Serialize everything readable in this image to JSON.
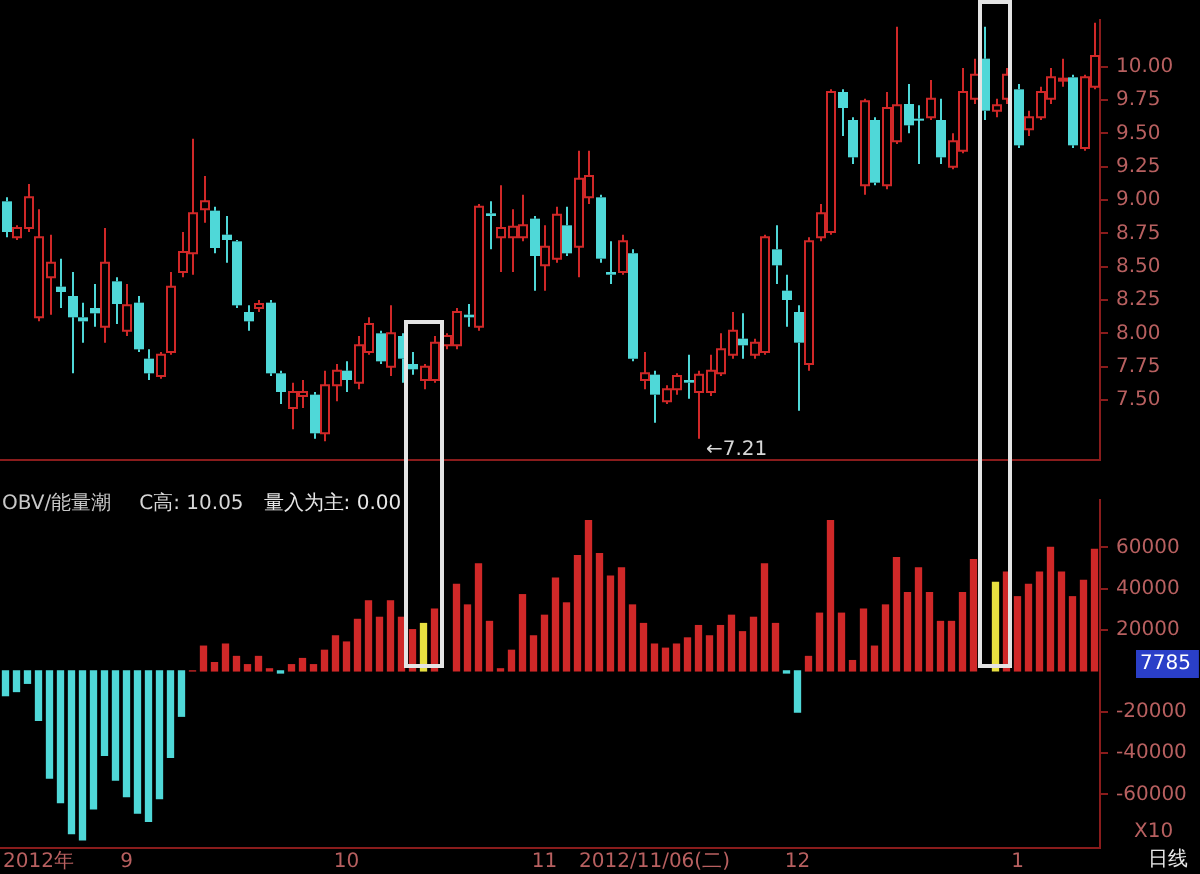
{
  "chart_data": [
    {
      "type": "candlestick",
      "categories": [
        null,
        null,
        null,
        null,
        null,
        null,
        null,
        null,
        null,
        null,
        null,
        null,
        null,
        null,
        null,
        null,
        null,
        null,
        null,
        null,
        null,
        null,
        null,
        null,
        null,
        null,
        null,
        null,
        null,
        null,
        null,
        null,
        null,
        null,
        null,
        null,
        null,
        null,
        null,
        null,
        null,
        null,
        null,
        null,
        null,
        null,
        null,
        null,
        null,
        null,
        null,
        null,
        null,
        null,
        null,
        null,
        null,
        null,
        null,
        null,
        null,
        null,
        null,
        null,
        null,
        null,
        null,
        null,
        null,
        null,
        null,
        null,
        null,
        null,
        null,
        null,
        null,
        null,
        null,
        null,
        null,
        null,
        null,
        null,
        null,
        null,
        null,
        null,
        null,
        null,
        null,
        null,
        null,
        null,
        null,
        null,
        null,
        null,
        null,
        null
      ],
      "ohlc": [
        [
          8.99,
          9.02,
          8.72,
          8.76
        ],
        [
          8.72,
          8.81,
          8.7,
          8.79
        ],
        [
          8.79,
          9.12,
          8.76,
          9.02
        ],
        [
          8.12,
          8.93,
          8.09,
          8.72
        ],
        [
          8.42,
          8.74,
          8.14,
          8.53
        ],
        [
          8.35,
          8.56,
          8.19,
          8.31
        ],
        [
          8.28,
          8.46,
          7.7,
          8.12
        ],
        [
          8.12,
          8.23,
          7.93,
          8.09
        ],
        [
          8.19,
          8.37,
          8.05,
          8.15
        ],
        [
          8.05,
          8.79,
          7.93,
          8.53
        ],
        [
          8.39,
          8.42,
          8.07,
          8.22
        ],
        [
          8.02,
          8.37,
          7.98,
          8.21
        ],
        [
          8.23,
          8.28,
          7.86,
          7.88
        ],
        [
          7.81,
          7.88,
          7.65,
          7.7
        ],
        [
          7.68,
          7.86,
          7.66,
          7.84
        ],
        [
          7.86,
          8.46,
          7.84,
          8.35
        ],
        [
          8.46,
          8.76,
          8.42,
          8.61
        ],
        [
          8.6,
          9.46,
          8.44,
          8.9
        ],
        [
          8.93,
          9.18,
          8.83,
          8.99
        ],
        [
          8.92,
          8.95,
          8.6,
          8.64
        ],
        [
          8.74,
          8.88,
          8.53,
          8.7
        ],
        [
          8.69,
          8.7,
          8.19,
          8.21
        ],
        [
          8.16,
          8.21,
          8.02,
          8.09
        ],
        [
          8.19,
          8.25,
          8.16,
          8.22
        ],
        [
          8.23,
          8.25,
          7.68,
          7.7
        ],
        [
          7.7,
          7.72,
          7.47,
          7.56
        ],
        [
          7.44,
          7.63,
          7.28,
          7.56
        ],
        [
          7.53,
          7.65,
          7.44,
          7.56
        ],
        [
          7.54,
          7.56,
          7.21,
          7.25
        ],
        [
          7.25,
          7.72,
          7.19,
          7.61
        ],
        [
          7.61,
          7.77,
          7.49,
          7.72
        ],
        [
          7.72,
          7.79,
          7.56,
          7.65
        ],
        [
          7.63,
          7.98,
          7.58,
          7.91
        ],
        [
          7.86,
          8.12,
          7.84,
          8.07
        ],
        [
          8.0,
          8.02,
          7.77,
          7.79
        ],
        [
          7.75,
          8.21,
          7.68,
          8.0
        ],
        [
          7.98,
          8.0,
          7.63,
          7.81
        ],
        [
          7.77,
          7.86,
          7.69,
          7.73
        ],
        [
          7.65,
          7.77,
          7.58,
          7.75
        ],
        [
          7.65,
          7.98,
          7.63,
          7.93
        ],
        [
          7.91,
          8.0,
          7.88,
          7.98
        ],
        [
          7.91,
          8.19,
          7.88,
          8.16
        ],
        [
          8.14,
          8.22,
          8.05,
          8.12
        ],
        [
          8.05,
          8.97,
          8.02,
          8.95
        ],
        [
          8.9,
          8.99,
          8.63,
          8.88
        ],
        [
          8.72,
          9.11,
          8.46,
          8.79
        ],
        [
          8.72,
          8.93,
          8.46,
          8.8
        ],
        [
          8.72,
          9.04,
          8.69,
          8.81
        ],
        [
          8.86,
          8.88,
          8.32,
          8.58
        ],
        [
          8.51,
          8.81,
          8.32,
          8.65
        ],
        [
          8.56,
          8.95,
          8.53,
          8.89
        ],
        [
          8.81,
          8.95,
          8.58,
          8.6
        ],
        [
          8.65,
          9.37,
          8.42,
          9.16
        ],
        [
          9.02,
          9.37,
          8.97,
          9.18
        ],
        [
          9.02,
          9.04,
          8.53,
          8.56
        ],
        [
          8.46,
          8.69,
          8.37,
          8.44
        ],
        [
          8.46,
          8.74,
          8.44,
          8.69
        ],
        [
          8.6,
          8.63,
          7.79,
          7.81
        ],
        [
          7.65,
          7.86,
          7.58,
          7.7
        ],
        [
          7.69,
          7.72,
          7.33,
          7.54
        ],
        [
          7.49,
          7.61,
          7.47,
          7.58
        ],
        [
          7.58,
          7.7,
          7.54,
          7.68
        ],
        [
          7.65,
          7.84,
          7.51,
          7.63
        ],
        [
          7.56,
          7.72,
          7.21,
          7.69
        ],
        [
          7.56,
          7.84,
          7.53,
          7.72
        ],
        [
          7.7,
          8.0,
          7.68,
          7.88
        ],
        [
          7.84,
          8.16,
          7.81,
          8.02
        ],
        [
          7.96,
          8.15,
          7.81,
          7.91
        ],
        [
          7.84,
          7.96,
          7.81,
          7.93
        ],
        [
          7.86,
          8.74,
          7.84,
          8.72
        ],
        [
          8.63,
          8.81,
          8.37,
          8.51
        ],
        [
          8.32,
          8.44,
          8.05,
          8.25
        ],
        [
          8.16,
          8.21,
          7.42,
          7.93
        ],
        [
          7.77,
          8.72,
          7.72,
          8.69
        ],
        [
          8.72,
          8.97,
          8.69,
          8.9
        ],
        [
          8.76,
          9.83,
          8.74,
          9.81
        ],
        [
          9.81,
          9.83,
          9.48,
          9.69
        ],
        [
          9.6,
          9.62,
          9.27,
          9.32
        ],
        [
          9.11,
          9.76,
          9.04,
          9.74
        ],
        [
          9.6,
          9.62,
          9.11,
          9.13
        ],
        [
          9.11,
          9.81,
          9.08,
          9.69
        ],
        [
          9.44,
          10.3,
          9.42,
          9.71
        ],
        [
          9.72,
          9.87,
          9.5,
          9.56
        ],
        [
          9.61,
          9.71,
          9.27,
          9.6
        ],
        [
          9.62,
          9.9,
          9.6,
          9.76
        ],
        [
          9.6,
          9.76,
          9.27,
          9.32
        ],
        [
          9.25,
          9.5,
          9.23,
          9.44
        ],
        [
          9.37,
          9.99,
          9.35,
          9.81
        ],
        [
          9.76,
          10.06,
          9.72,
          9.94
        ],
        [
          10.06,
          10.3,
          9.6,
          9.67
        ],
        [
          9.67,
          9.76,
          9.62,
          9.71
        ],
        [
          9.76,
          9.99,
          9.72,
          9.94
        ],
        [
          9.83,
          9.87,
          9.39,
          9.41
        ],
        [
          9.53,
          9.67,
          9.48,
          9.62
        ],
        [
          9.62,
          9.85,
          9.6,
          9.81
        ],
        [
          9.76,
          9.99,
          9.72,
          9.92
        ],
        [
          9.9,
          10.06,
          9.85,
          9.91
        ],
        [
          9.92,
          9.94,
          9.39,
          9.41
        ],
        [
          9.39,
          9.94,
          9.37,
          9.92
        ],
        [
          9.85,
          10.33,
          9.83,
          10.08
        ]
      ],
      "colors": [
        "#4fd8d8",
        "#d02828",
        "#d02828",
        "#d02828",
        "#d02828",
        "#4fd8d8",
        "#4fd8d8",
        "#4fd8d8",
        "#4fd8d8",
        "#d02828",
        "#4fd8d8",
        "#d02828",
        "#4fd8d8",
        "#4fd8d8",
        "#d02828",
        "#d02828",
        "#d02828",
        "#d02828",
        "#d02828",
        "#4fd8d8",
        "#4fd8d8",
        "#4fd8d8",
        "#4fd8d8",
        "#d02828",
        "#4fd8d8",
        "#4fd8d8",
        "#d02828",
        "#d02828",
        "#4fd8d8",
        "#d02828",
        "#d02828",
        "#4fd8d8",
        "#d02828",
        "#d02828",
        "#4fd8d8",
        "#d02828",
        "#4fd8d8",
        "#4fd8d8",
        "#d02828",
        "#d02828",
        "#d02828",
        "#d02828",
        "#4fd8d8",
        "#d02828",
        "#4fd8d8",
        "#d02828",
        "#d02828",
        "#d02828",
        "#4fd8d8",
        "#d02828",
        "#d02828",
        "#4fd8d8",
        "#d02828",
        "#d02828",
        "#4fd8d8",
        "#4fd8d8",
        "#d02828",
        "#4fd8d8",
        "#d02828",
        "#4fd8d8",
        "#d02828",
        "#d02828",
        "#4fd8d8",
        "#d02828",
        "#d02828",
        "#d02828",
        "#d02828",
        "#4fd8d8",
        "#d02828",
        "#d02828",
        "#4fd8d8",
        "#4fd8d8",
        "#4fd8d8",
        "#d02828",
        "#d02828",
        "#d02828",
        "#4fd8d8",
        "#4fd8d8",
        "#d02828",
        "#4fd8d8",
        "#d02828",
        "#d02828",
        "#4fd8d8",
        "#4fd8d8",
        "#d02828",
        "#4fd8d8",
        "#d02828",
        "#d02828",
        "#d02828",
        "#4fd8d8",
        "#d02828",
        "#d02828",
        "#4fd8d8",
        "#d02828",
        "#d02828",
        "#d02828",
        "#d02828",
        "#4fd8d8",
        "#d02828",
        "#d02828"
      ],
      "ylim": [
        7.05,
        10.35
      ],
      "yticks": [
        {
          "value": 7.5,
          "label": "7.50"
        },
        7.75,
        {
          "value": 8,
          "label": "8.00"
        },
        8.25,
        {
          "value": 8.5,
          "label": "8.50"
        },
        8.75,
        {
          "value": 9,
          "label": "9.00"
        },
        9.25,
        {
          "value": 9.5,
          "label": "9.50"
        },
        9.75,
        {
          "value": 10,
          "label": "10.00"
        }
      ],
      "annotations": [
        "←7.21"
      ]
    },
    {
      "type": "bar",
      "title": "OBV/能量潮",
      "categories": [
        null,
        null,
        null,
        "2012年",
        null,
        null,
        null,
        null,
        null,
        null,
        null,
        "9",
        null,
        null,
        null,
        null,
        null,
        null,
        null,
        null,
        null,
        null,
        null,
        null,
        null,
        null,
        null,
        null,
        null,
        null,
        null,
        "10",
        null,
        null,
        null,
        null,
        null,
        null,
        null,
        null,
        null,
        null,
        null,
        null,
        null,
        null,
        null,
        null,
        null,
        "11",
        null,
        null,
        null,
        null,
        null,
        null,
        null,
        null,
        null,
        "2012/11/06(二)",
        null,
        null,
        null,
        null,
        null,
        null,
        null,
        null,
        null,
        null,
        null,
        null,
        "12",
        null,
        null,
        null,
        null,
        null,
        null,
        null,
        null,
        null,
        null,
        null,
        null,
        null,
        null,
        null,
        null,
        null,
        null,
        null,
        "1",
        null,
        null,
        null,
        null,
        null,
        null,
        null
      ],
      "values": [
        -12000,
        -10000,
        -6000,
        -24000,
        -52000,
        -64000,
        -79000,
        -82000,
        -67000,
        -41000,
        -53000,
        -61000,
        -69000,
        -73000,
        -62000,
        -42000,
        -22000,
        0,
        12000,
        4000,
        13000,
        7000,
        3000,
        7000,
        1000,
        -1000,
        3000,
        6000,
        3000,
        10000,
        17000,
        14000,
        25000,
        34000,
        26000,
        34000,
        26000,
        20000,
        23000,
        30000,
        null,
        42000,
        32000,
        52000,
        24000,
        1000,
        10000,
        37000,
        17000,
        27000,
        45000,
        33000,
        56000,
        73000,
        57000,
        46000,
        50000,
        32000,
        23000,
        13000,
        11000,
        13000,
        16000,
        22000,
        17000,
        22000,
        27000,
        19000,
        26000,
        52000,
        23000,
        -1000,
        -20000,
        7000,
        28000,
        73000,
        28000,
        5000,
        30000,
        12000,
        32000,
        55000,
        38000,
        50000,
        38000,
        24000,
        24000,
        38000,
        54000,
        null,
        43000,
        48000,
        36000,
        42000,
        48000,
        60000,
        48000,
        36000,
        44000,
        59000
      ],
      "colors": [
        "#4fd8d8",
        "#4fd8d8",
        "#4fd8d8",
        "#4fd8d8",
        "#4fd8d8",
        "#4fd8d8",
        "#4fd8d8",
        "#4fd8d8",
        "#4fd8d8",
        "#4fd8d8",
        "#4fd8d8",
        "#4fd8d8",
        "#4fd8d8",
        "#4fd8d8",
        "#4fd8d8",
        "#4fd8d8",
        "#4fd8d8",
        "#d02828",
        "#d02828",
        "#d02828",
        "#d02828",
        "#d02828",
        "#d02828",
        "#d02828",
        "#d02828",
        "#4fd8d8",
        "#d02828",
        "#d02828",
        "#d02828",
        "#d02828",
        "#d02828",
        "#d02828",
        "#d02828",
        "#d02828",
        "#d02828",
        "#d02828",
        "#d02828",
        "#d02828",
        "#e8e040",
        "#d02828",
        "#d02828",
        "#d02828",
        "#d02828",
        "#d02828",
        "#d02828",
        "#d02828",
        "#d02828",
        "#d02828",
        "#d02828",
        "#d02828",
        "#d02828",
        "#d02828",
        "#d02828",
        "#d02828",
        "#d02828",
        "#d02828",
        "#d02828",
        "#d02828",
        "#d02828",
        "#d02828",
        "#d02828",
        "#d02828",
        "#d02828",
        "#d02828",
        "#d02828",
        "#d02828",
        "#d02828",
        "#d02828",
        "#d02828",
        "#d02828",
        "#d02828",
        "#4fd8d8",
        "#4fd8d8",
        "#d02828",
        "#d02828",
        "#d02828",
        "#d02828",
        "#d02828",
        "#d02828",
        "#d02828",
        "#d02828",
        "#d02828",
        "#d02828",
        "#d02828",
        "#d02828",
        "#d02828",
        "#d02828",
        "#d02828",
        "#d02828",
        "#d02828",
        "#e8e040",
        "#d02828",
        "#d02828",
        "#d02828",
        "#d02828",
        "#d02828",
        "#d02828",
        "#d02828",
        "#d02828",
        "#d02828"
      ],
      "ylim": [
        -86000,
        83000
      ],
      "yticks": [
        -60000,
        -40000,
        -20000,
        20000,
        40000,
        60000
      ],
      "annotations": [
        "C高: 10.05",
        "量入为主: 0.00",
        "7785",
        "X10",
        "日线"
      ]
    }
  ]
}
